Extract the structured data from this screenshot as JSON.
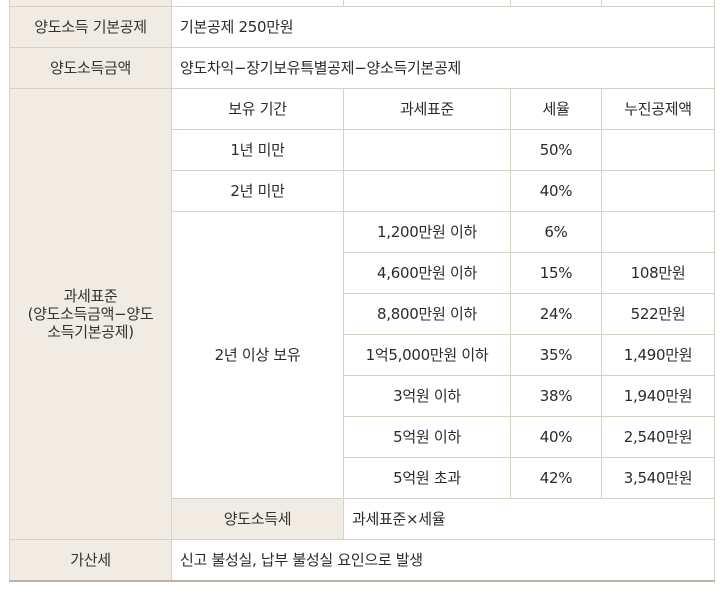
{
  "rows": {
    "basic_deduction": {
      "label": "양도소득 기본공제",
      "value": "기본공제 250만원"
    },
    "income_amount": {
      "label": "양도소득금액",
      "value": "양도차익−장기보유특별공제−양소득기본공제"
    },
    "tax_base": {
      "label_lines": [
        "과세표준",
        "(양도소득금액−양도",
        "소득기본공제)"
      ],
      "headers": {
        "period": "보유 기간",
        "base": "과세표준",
        "rate": "세율",
        "deduction": "누진공제액"
      },
      "short_terms": [
        {
          "period": "1년 미만",
          "rate": "50%"
        },
        {
          "period": "2년 미만",
          "rate": "40%"
        }
      ],
      "long_term": {
        "period": "2년 이상 보유",
        "brackets": [
          {
            "base": "1,200만원 이하",
            "rate": "6%",
            "deduction": ""
          },
          {
            "base": "4,600만원 이하",
            "rate": "15%",
            "deduction": "108만원"
          },
          {
            "base": "8,800만원 이하",
            "rate": "24%",
            "deduction": "522만원"
          },
          {
            "base": "1억5,000만원 이하",
            "rate": "35%",
            "deduction": "1,490만원"
          },
          {
            "base": "3억원 이하",
            "rate": "38%",
            "deduction": "1,940만원"
          },
          {
            "base": "5억원 이하",
            "rate": "40%",
            "deduction": "2,540만원"
          },
          {
            "base": "5억원 초과",
            "rate": "42%",
            "deduction": "3,540만원"
          }
        ]
      }
    },
    "income_tax": {
      "label": "양도소득세",
      "value": "과세표준×세율"
    },
    "penalty": {
      "label": "가산세",
      "value": "신고 불성실, 납부 불성실 요인으로 발생"
    }
  }
}
